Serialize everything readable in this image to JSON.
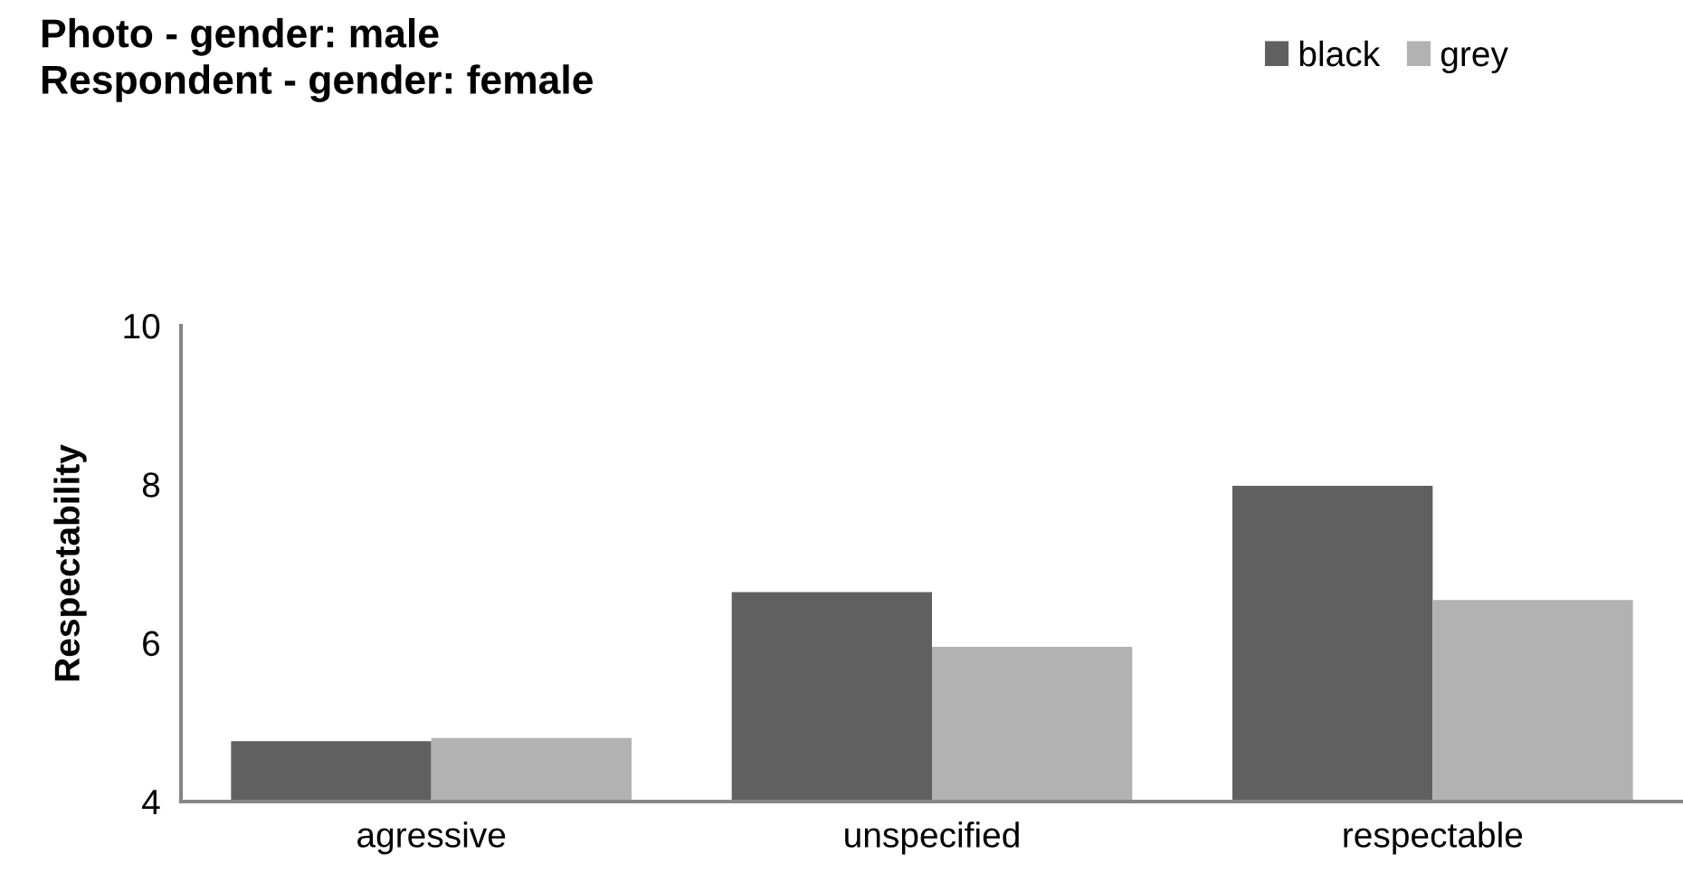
{
  "chart_data": {
    "type": "bar",
    "title": "Photo - gender: male\nRespondent - gender: female",
    "ylabel": "Respectability",
    "categories": [
      "agressive",
      "unspecified",
      "respectable"
    ],
    "series": [
      {
        "name": "black",
        "color": "#606060",
        "values": [
          4.76,
          6.64,
          7.98
        ]
      },
      {
        "name": "grey",
        "color": "#b2b2b2",
        "values": [
          4.8,
          5.95,
          6.54
        ]
      }
    ],
    "ylim": [
      4,
      10
    ],
    "yticks": [
      4,
      6,
      8,
      10
    ],
    "grid": false,
    "legend": "top right"
  }
}
